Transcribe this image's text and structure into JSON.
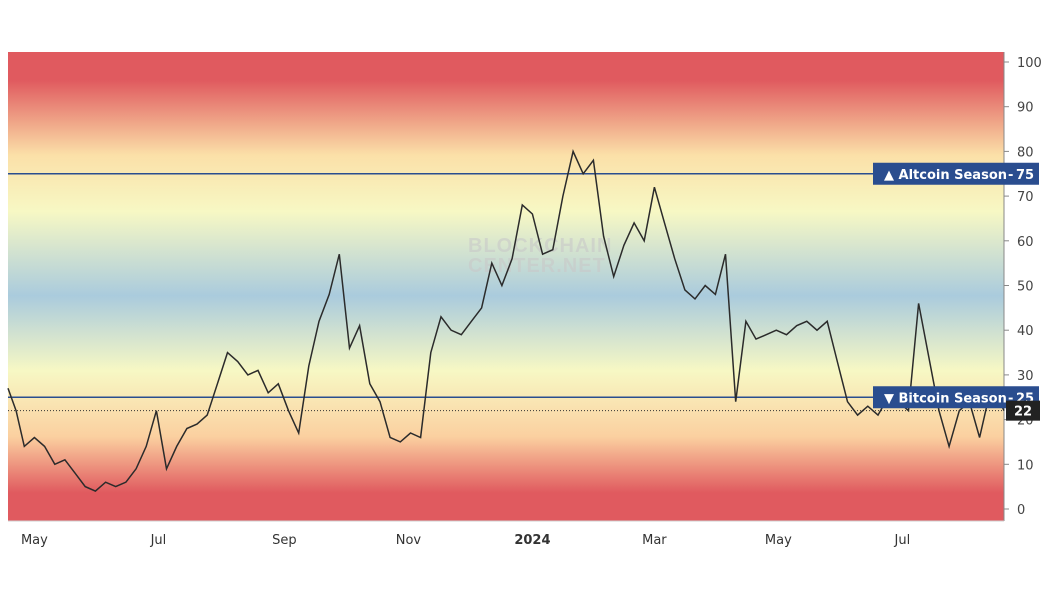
{
  "watermark": {
    "line1": "BLOCKCHAIN",
    "line2": "CENTER.NET"
  },
  "colors": {
    "line": "#2b2b2b",
    "threshold_line": "#2a4d8f",
    "tag_bg": "#2a4d8f",
    "current_tag_bg": "#222222",
    "band_top": "#e05a5f",
    "band_upper": "#fbe0a8",
    "band_mid_high": "#f7f8c4",
    "band_mid": "#aacbdd",
    "band_mid_low": "#f7f8c4",
    "band_lower": "#fbd0a0",
    "band_bottom": "#e05a5f"
  },
  "thresholds": {
    "altcoin": {
      "label": "▲ Altcoin Season",
      "value": "75",
      "level": 75
    },
    "bitcoin": {
      "label": "▼ Bitcoin Season",
      "value": "25",
      "level": 25
    }
  },
  "current": {
    "value": "22",
    "level": 22
  },
  "chart_data": {
    "type": "line",
    "title": "",
    "xlabel": "",
    "ylabel": "",
    "ylim": [
      0,
      100
    ],
    "x_ticks": [
      "May",
      "Jul",
      "Sep",
      "Nov",
      "2024",
      "Mar",
      "May",
      "Jul"
    ],
    "x_tick_dates": [
      "2023-05-01",
      "2023-07-01",
      "2023-09-01",
      "2023-11-01",
      "2024-01-01",
      "2024-03-01",
      "2024-05-01",
      "2024-07-01"
    ],
    "x_range": [
      "2023-04-18",
      "2024-08-20"
    ],
    "y_ticks": [
      0,
      10,
      20,
      30,
      40,
      50,
      60,
      70,
      80,
      90,
      100
    ],
    "series": [
      {
        "x": [
          "2023-04-18",
          "2023-04-22",
          "2023-04-26",
          "2023-05-01",
          "2023-05-06",
          "2023-05-11",
          "2023-05-16",
          "2023-05-21",
          "2023-05-26",
          "2023-05-31",
          "2023-06-05",
          "2023-06-10",
          "2023-06-15",
          "2023-06-20",
          "2023-06-25",
          "2023-06-30",
          "2023-07-05",
          "2023-07-10",
          "2023-07-15",
          "2023-07-20",
          "2023-07-25",
          "2023-07-30",
          "2023-08-04",
          "2023-08-09",
          "2023-08-14",
          "2023-08-19",
          "2023-08-24",
          "2023-08-29",
          "2023-09-03",
          "2023-09-08",
          "2023-09-13",
          "2023-09-18",
          "2023-09-23",
          "2023-09-28",
          "2023-10-03",
          "2023-10-08",
          "2023-10-13",
          "2023-10-18",
          "2023-10-23",
          "2023-10-28",
          "2023-11-02",
          "2023-11-07",
          "2023-11-12",
          "2023-11-17",
          "2023-11-22",
          "2023-11-27",
          "2023-12-02",
          "2023-12-07",
          "2023-12-12",
          "2023-12-17",
          "2023-12-22",
          "2023-12-27",
          "2024-01-01",
          "2024-01-06",
          "2024-01-11",
          "2024-01-16",
          "2024-01-21",
          "2024-01-26",
          "2024-01-31",
          "2024-02-05",
          "2024-02-10",
          "2024-02-15",
          "2024-02-20",
          "2024-02-25",
          "2024-03-01",
          "2024-03-06",
          "2024-03-11",
          "2024-03-16",
          "2024-03-21",
          "2024-03-26",
          "2024-03-31",
          "2024-04-05",
          "2024-04-10",
          "2024-04-15",
          "2024-04-20",
          "2024-04-25",
          "2024-04-30",
          "2024-05-05",
          "2024-05-10",
          "2024-05-15",
          "2024-05-20",
          "2024-05-25",
          "2024-05-30",
          "2024-06-04",
          "2024-06-09",
          "2024-06-14",
          "2024-06-19",
          "2024-06-24",
          "2024-06-29",
          "2024-07-04",
          "2024-07-09",
          "2024-07-14",
          "2024-07-19",
          "2024-07-24",
          "2024-07-29",
          "2024-08-03",
          "2024-08-08",
          "2024-08-13",
          "2024-08-18",
          "2024-08-20"
        ],
        "y": [
          27,
          22,
          14,
          16,
          14,
          10,
          11,
          8,
          5,
          4,
          6,
          5,
          6,
          9,
          14,
          22,
          9,
          14,
          18,
          19,
          21,
          28,
          35,
          33,
          30,
          31,
          26,
          28,
          22,
          17,
          32,
          42,
          48,
          57,
          36,
          41,
          28,
          24,
          16,
          15,
          17,
          16,
          35,
          43,
          40,
          39,
          42,
          45,
          55,
          50,
          56,
          68,
          66,
          57,
          58,
          70,
          80,
          75,
          78,
          61,
          52,
          59,
          64,
          60,
          72,
          64,
          56,
          49,
          47,
          50,
          48,
          57,
          24,
          42,
          38,
          39,
          40,
          39,
          41,
          42,
          40,
          42,
          33,
          24,
          21,
          23,
          21,
          25,
          24,
          22,
          46,
          34,
          22,
          14,
          22,
          24,
          16,
          26,
          24,
          22
        ]
      }
    ]
  }
}
